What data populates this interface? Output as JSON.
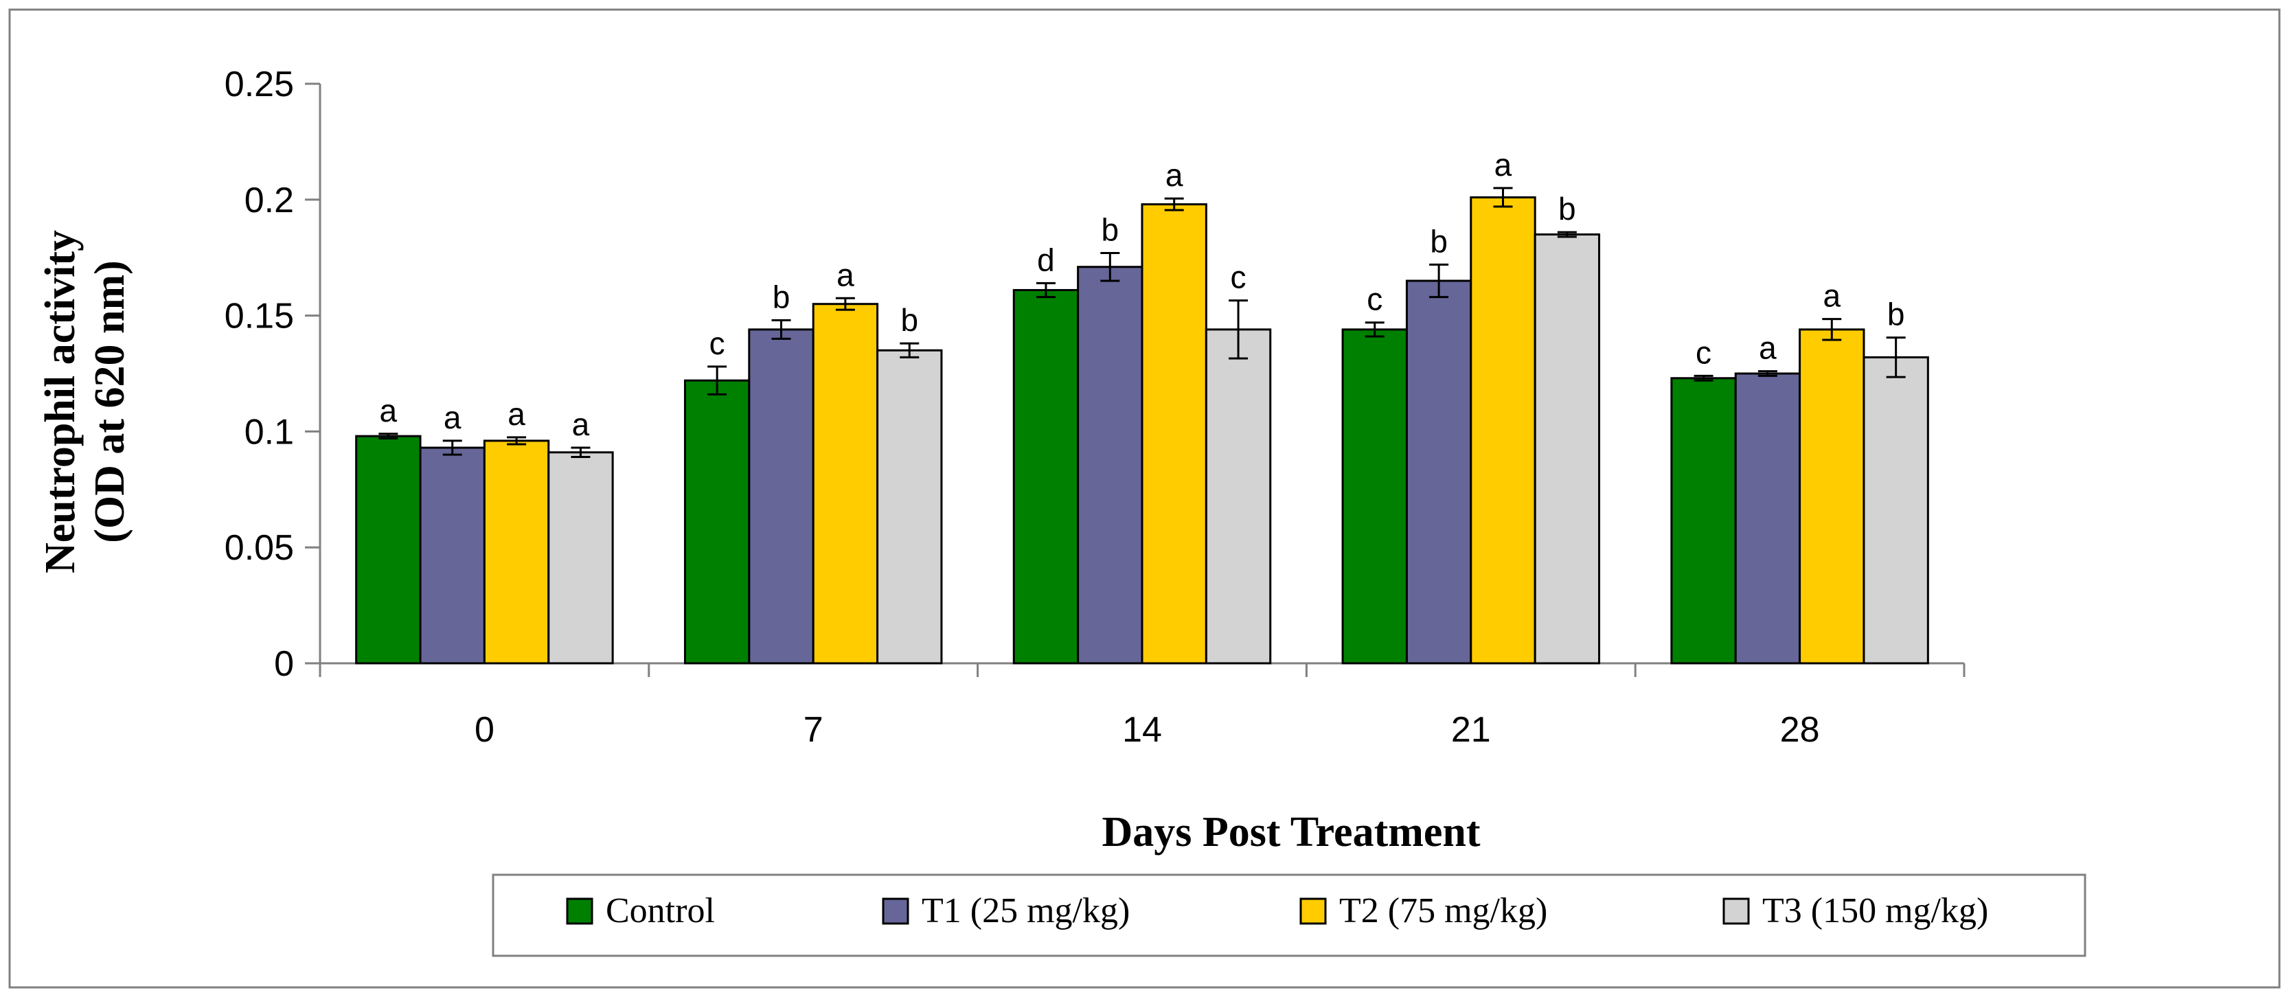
{
  "chart_data": {
    "type": "bar",
    "title": "",
    "xlabel": "Days Post Treatment",
    "ylabel_line1": "Neutrophil activity",
    "ylabel_line2": "(OD at 620 nm)",
    "ylim": [
      0,
      0.25
    ],
    "yticks": [
      "0",
      "0.05",
      "0.1",
      "0.15",
      "0.2",
      "0.25"
    ],
    "categories": [
      "0",
      "7",
      "14",
      "21",
      "28"
    ],
    "legend_position": "bottom",
    "grid": false,
    "series": [
      {
        "name": "Control",
        "color": "#008000",
        "values": [
          0.098,
          0.122,
          0.161,
          0.144,
          0.123
        ],
        "errors": [
          0.001,
          0.006,
          0.003,
          0.003,
          0.001
        ],
        "labels": [
          "a",
          "c",
          "d",
          "c",
          "c"
        ]
      },
      {
        "name": "T1 (25 mg/kg)",
        "color": "#666699",
        "values": [
          0.093,
          0.144,
          0.171,
          0.165,
          0.125
        ],
        "errors": [
          0.003,
          0.004,
          0.006,
          0.007,
          0.001
        ],
        "labels": [
          "a",
          "b",
          "b",
          "b",
          "a"
        ]
      },
      {
        "name": "T2 (75 mg/kg)",
        "color": "#FFCC00",
        "values": [
          0.096,
          0.155,
          0.198,
          0.201,
          0.144
        ],
        "errors": [
          0.0015,
          0.0025,
          0.0025,
          0.004,
          0.0045
        ],
        "labels": [
          "a",
          "a",
          "a",
          "a",
          "a"
        ]
      },
      {
        "name": "T3 (150 mg/kg)",
        "color": "#D3D3D3",
        "values": [
          0.091,
          0.135,
          0.144,
          0.185,
          0.132
        ],
        "errors": [
          0.002,
          0.003,
          0.0125,
          0.001,
          0.0085
        ],
        "labels": [
          "a",
          "b",
          "c",
          "b",
          "b"
        ]
      }
    ]
  }
}
